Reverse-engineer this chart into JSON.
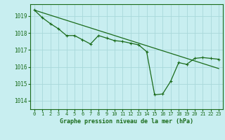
{
  "title": "Graphe pression niveau de la mer (hPa)",
  "background_color": "#c8eef0",
  "grid_color": "#a8d8da",
  "line_color": "#1a6b1a",
  "text_color": "#1a6b1a",
  "xlim": [
    -0.5,
    23.5
  ],
  "ylim": [
    1013.5,
    1019.7
  ],
  "yticks": [
    1014,
    1015,
    1016,
    1017,
    1018,
    1019
  ],
  "xticks": [
    0,
    1,
    2,
    3,
    4,
    5,
    6,
    7,
    8,
    9,
    10,
    11,
    12,
    13,
    14,
    15,
    16,
    17,
    18,
    19,
    20,
    21,
    22,
    23
  ],
  "main_series": [
    1019.35,
    1018.9,
    1018.55,
    1018.25,
    1017.85,
    1017.85,
    1017.6,
    1017.35,
    1017.85,
    1017.7,
    1017.55,
    1017.5,
    1017.4,
    1017.3,
    1016.9,
    1014.35,
    1014.4,
    1015.15,
    1016.25,
    1016.15,
    1016.5,
    1016.55,
    1016.5,
    1016.45
  ],
  "trend_line_x": [
    0,
    23
  ],
  "trend_line_y": [
    1019.35,
    1015.9
  ]
}
